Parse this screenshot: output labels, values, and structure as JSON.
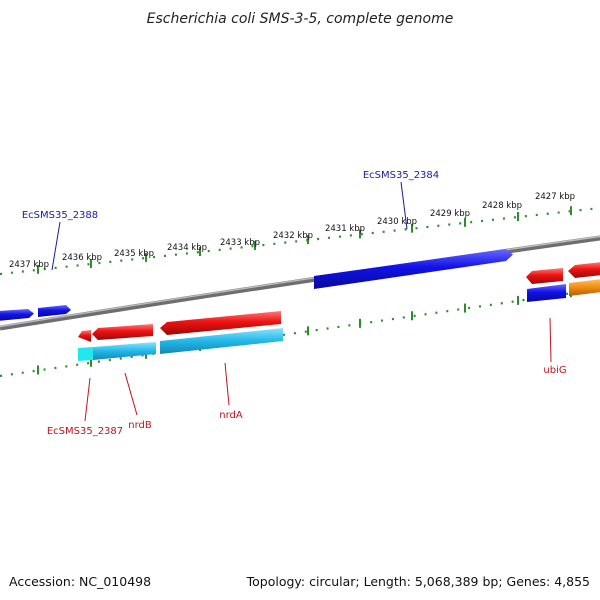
{
  "title": "Escherichia coli SMS-3-5, complete genome",
  "footer": {
    "accession": "Accession: NC_010498",
    "summary": "Topology: circular; Length: 5,068,389 bp; Genes: 4,855"
  },
  "scale": {
    "unit": "kbp",
    "ticks": [
      {
        "label": "2437 kbp"
      },
      {
        "label": "2436 kbp"
      },
      {
        "label": "2435 kbp"
      },
      {
        "label": "2434 kbp"
      },
      {
        "label": "2433 kbp"
      },
      {
        "label": "2432 kbp"
      },
      {
        "label": "2431 kbp"
      },
      {
        "label": "2430 kbp"
      },
      {
        "label": "2429 kbp"
      },
      {
        "label": "2428 kbp"
      },
      {
        "label": "2427 kbp"
      }
    ]
  },
  "gene_labels": {
    "top": [
      {
        "name": "EcSMS35_2388"
      },
      {
        "name": "EcSMS35_2384"
      }
    ],
    "bottom": [
      {
        "name": "EcSMS35_2387"
      },
      {
        "name": "nrdB"
      },
      {
        "name": "nrdA"
      },
      {
        "name": "ubiG"
      }
    ]
  },
  "colors": {
    "forward_label": "#1a1aa8",
    "reverse_label": "#c0141e",
    "forward_gene": "#1010e6",
    "reverse_gene": "#e81010",
    "cds_cyan": "#22b8e8",
    "cds_orange": "#f08c10",
    "backbone": "#8c8c8c",
    "tick": "#2e8b2e"
  }
}
